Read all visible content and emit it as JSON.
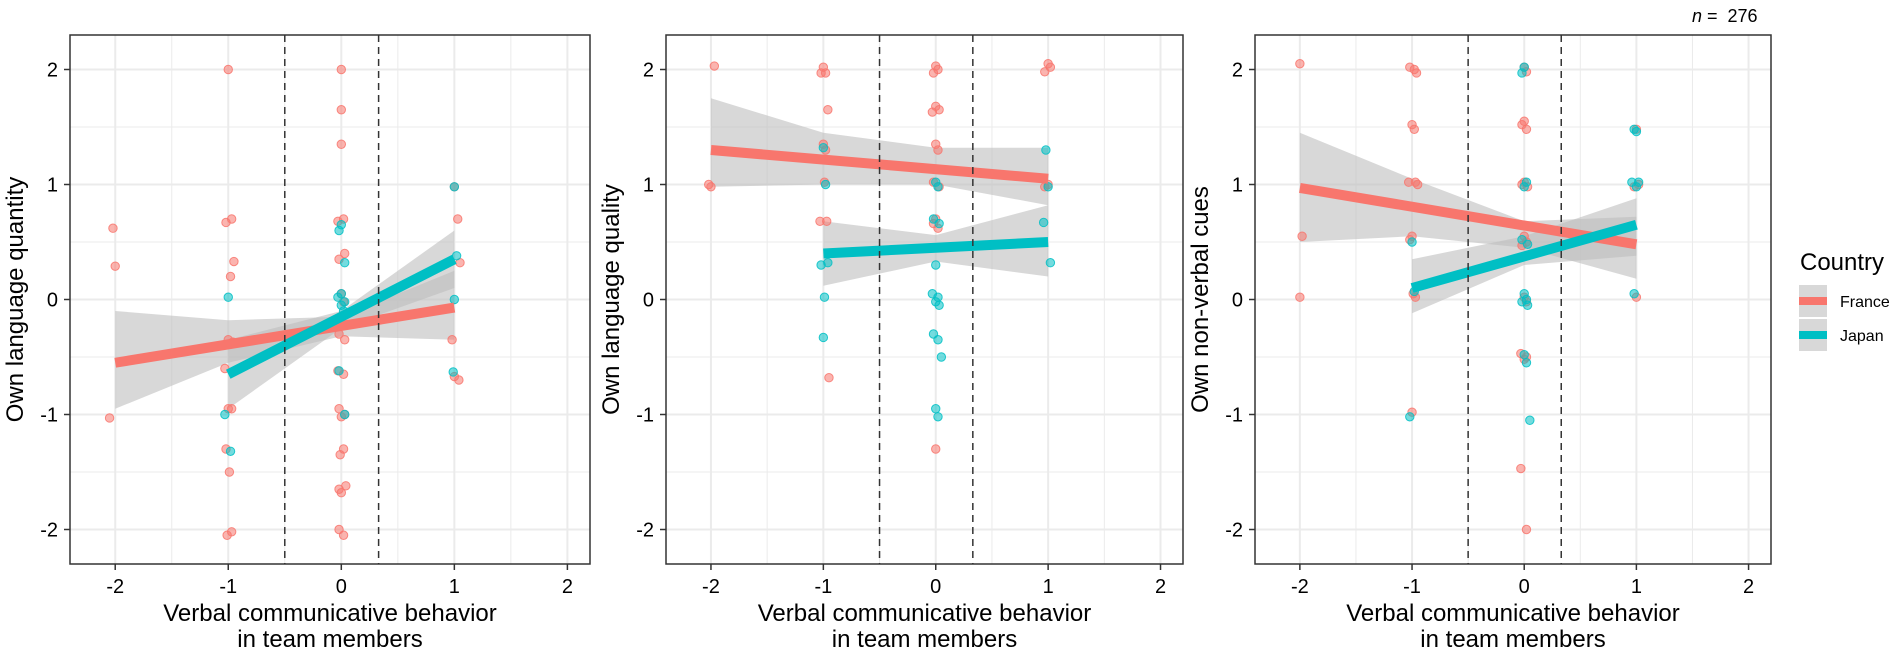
{
  "annotation": {
    "n_italic": "n",
    "n_rest": " =  276"
  },
  "legend": {
    "title": "Country",
    "items": [
      {
        "label": "France",
        "color": "#F8766D"
      },
      {
        "label": "Japan",
        "color": "#00BFC4"
      }
    ]
  },
  "colors": {
    "ci_band": "#BEBEBE",
    "grid": "#EBEBEB",
    "vline": "#333333"
  },
  "chart_data": [
    {
      "type": "scatter",
      "xlabel": [
        "Verbal communicative behavior",
        "in team members"
      ],
      "ylabel": "Own language quantity",
      "xlim": [
        -2.4,
        2.2
      ],
      "ylim": [
        -2.3,
        2.3
      ],
      "xticks": [
        -2,
        -1,
        0,
        1,
        2
      ],
      "yticks": [
        -2,
        -1,
        0,
        1,
        2
      ],
      "vlines": [
        -0.5,
        0.33
      ],
      "series": [
        {
          "name": "France",
          "line": {
            "x": [
              -2,
              1
            ],
            "y": [
              -0.55,
              -0.07
            ]
          },
          "ci": {
            "x": [
              -2,
              -1,
              0,
              1
            ],
            "lower": [
              -0.95,
              -0.55,
              -0.32,
              -0.35
            ],
            "upper": [
              -0.1,
              -0.18,
              -0.15,
              0.25
            ]
          },
          "points": [
            [
              -2.02,
              0.62
            ],
            [
              -2.0,
              0.29
            ],
            [
              -2.05,
              -1.03
            ],
            [
              -1.0,
              2.0
            ],
            [
              -1.02,
              0.67
            ],
            [
              -0.97,
              0.7
            ],
            [
              -0.95,
              0.33
            ],
            [
              -0.98,
              0.2
            ],
            [
              -1.0,
              -0.35
            ],
            [
              -0.96,
              -0.37
            ],
            [
              -1.03,
              -0.6
            ],
            [
              -1.0,
              -0.95
            ],
            [
              -0.97,
              -0.95
            ],
            [
              -1.02,
              -1.3
            ],
            [
              -0.99,
              -1.5
            ],
            [
              -1.01,
              -2.05
            ],
            [
              -0.97,
              -2.02
            ],
            [
              0.0,
              2.0
            ],
            [
              0.0,
              1.65
            ],
            [
              0.0,
              1.35
            ],
            [
              0.02,
              0.7
            ],
            [
              -0.03,
              0.68
            ],
            [
              0.03,
              0.4
            ],
            [
              -0.02,
              0.35
            ],
            [
              0.0,
              0.05
            ],
            [
              0.02,
              -0.02
            ],
            [
              -0.02,
              -0.3
            ],
            [
              0.03,
              -0.35
            ],
            [
              -0.03,
              -0.62
            ],
            [
              0.02,
              -0.65
            ],
            [
              -0.02,
              -0.95
            ],
            [
              0.03,
              -1.0
            ],
            [
              0.0,
              -1.02
            ],
            [
              0.02,
              -1.3
            ],
            [
              -0.01,
              -1.35
            ],
            [
              0.04,
              -1.62
            ],
            [
              -0.02,
              -1.65
            ],
            [
              0.0,
              -1.68
            ],
            [
              -0.02,
              -2.0
            ],
            [
              0.02,
              -2.05
            ],
            [
              1.0,
              0.98
            ],
            [
              1.03,
              0.7
            ],
            [
              1.05,
              0.32
            ],
            [
              0.98,
              -0.35
            ],
            [
              1.0,
              -0.67
            ],
            [
              1.04,
              -0.7
            ]
          ]
        },
        {
          "name": "Japan",
          "line": {
            "x": [
              -1,
              1
            ],
            "y": [
              -0.65,
              0.35
            ]
          },
          "ci": {
            "x": [
              -1,
              0,
              1
            ],
            "lower": [
              -0.95,
              -0.25,
              0.1
            ],
            "upper": [
              -0.35,
              -0.1,
              0.6
            ]
          },
          "points": [
            [
              -1.0,
              0.02
            ],
            [
              -1.03,
              -1.0
            ],
            [
              -0.98,
              -1.32
            ],
            [
              0.0,
              0.65
            ],
            [
              -0.02,
              0.6
            ],
            [
              0.03,
              0.32
            ],
            [
              0.0,
              0.05
            ],
            [
              -0.03,
              0.02
            ],
            [
              0.03,
              -0.02
            ],
            [
              0.0,
              -0.05
            ],
            [
              0.02,
              -0.1
            ],
            [
              -0.02,
              -0.62
            ],
            [
              0.03,
              -1.0
            ],
            [
              1.0,
              0.98
            ],
            [
              1.02,
              0.38
            ],
            [
              1.0,
              0.0
            ],
            [
              0.99,
              -0.63
            ]
          ]
        }
      ]
    },
    {
      "type": "scatter",
      "xlabel": [
        "Verbal communicative behavior",
        "in team members"
      ],
      "ylabel": "Own language quality",
      "xlim": [
        -2.4,
        2.2
      ],
      "ylim": [
        -2.3,
        2.3
      ],
      "xticks": [
        -2,
        -1,
        0,
        1,
        2
      ],
      "yticks": [
        -2,
        -1,
        0,
        1,
        2
      ],
      "vlines": [
        -0.5,
        0.33
      ],
      "series": [
        {
          "name": "France",
          "line": {
            "x": [
              -2,
              1
            ],
            "y": [
              1.3,
              1.05
            ]
          },
          "ci": {
            "x": [
              -2,
              -1,
              0,
              1
            ],
            "lower": [
              0.98,
              1.0,
              1.0,
              0.82
            ],
            "upper": [
              1.75,
              1.45,
              1.32,
              1.32
            ]
          },
          "points": [
            [
              -2.02,
              1.0
            ],
            [
              -2.0,
              0.98
            ],
            [
              -1.97,
              2.03
            ],
            [
              -1.0,
              2.02
            ],
            [
              -0.98,
              1.97
            ],
            [
              -1.02,
              1.97
            ],
            [
              -0.96,
              1.65
            ],
            [
              -1.0,
              1.35
            ],
            [
              -0.98,
              1.3
            ],
            [
              -0.99,
              1.02
            ],
            [
              -1.03,
              0.68
            ],
            [
              -0.97,
              0.68
            ],
            [
              -0.95,
              -0.68
            ],
            [
              0.0,
              2.03
            ],
            [
              0.02,
              2.0
            ],
            [
              -0.02,
              1.97
            ],
            [
              0.0,
              1.68
            ],
            [
              0.03,
              1.65
            ],
            [
              -0.03,
              1.63
            ],
            [
              0.0,
              1.35
            ],
            [
              0.02,
              1.3
            ],
            [
              -0.02,
              1.02
            ],
            [
              0.03,
              0.98
            ],
            [
              0.0,
              0.7
            ],
            [
              -0.02,
              0.66
            ],
            [
              0.02,
              0.62
            ],
            [
              0.0,
              -1.3
            ],
            [
              1.0,
              2.05
            ],
            [
              1.02,
              2.02
            ],
            [
              0.97,
              1.98
            ],
            [
              1.0,
              1.0
            ],
            [
              0.97,
              0.98
            ]
          ]
        },
        {
          "name": "Japan",
          "line": {
            "x": [
              -1,
              1
            ],
            "y": [
              0.4,
              0.5
            ]
          },
          "ci": {
            "x": [
              -1,
              0,
              1
            ],
            "lower": [
              0.12,
              0.33,
              0.2
            ],
            "upper": [
              0.68,
              0.56,
              0.82
            ]
          },
          "points": [
            [
              -1.0,
              1.32
            ],
            [
              -0.98,
              1.0
            ],
            [
              -0.96,
              0.32
            ],
            [
              -1.02,
              0.3
            ],
            [
              -0.99,
              0.02
            ],
            [
              -1.0,
              -0.33
            ],
            [
              0.0,
              1.02
            ],
            [
              0.02,
              0.98
            ],
            [
              -0.02,
              0.7
            ],
            [
              0.03,
              0.66
            ],
            [
              0.0,
              0.3
            ],
            [
              -0.03,
              0.05
            ],
            [
              0.02,
              0.02
            ],
            [
              0.0,
              -0.02
            ],
            [
              0.03,
              -0.05
            ],
            [
              -0.02,
              -0.3
            ],
            [
              0.02,
              -0.35
            ],
            [
              0.05,
              -0.5
            ],
            [
              0.0,
              -0.95
            ],
            [
              0.02,
              -1.02
            ],
            [
              0.98,
              1.3
            ],
            [
              1.0,
              0.98
            ],
            [
              0.96,
              0.67
            ],
            [
              1.02,
              0.32
            ]
          ]
        }
      ]
    },
    {
      "type": "scatter",
      "xlabel": [
        "Verbal communicative behavior",
        "in team members"
      ],
      "ylabel": "Own non-verbal cues",
      "xlim": [
        -2.4,
        2.2
      ],
      "ylim": [
        -2.3,
        2.3
      ],
      "xticks": [
        -2,
        -1,
        0,
        1,
        2
      ],
      "yticks": [
        -2,
        -1,
        0,
        1,
        2
      ],
      "vlines": [
        -0.5,
        0.33
      ],
      "series": [
        {
          "name": "France",
          "line": {
            "x": [
              -2,
              1
            ],
            "y": [
              0.97,
              0.48
            ]
          },
          "ci": {
            "x": [
              -2,
              -1,
              0,
              1
            ],
            "lower": [
              0.5,
              0.55,
              0.45,
              0.18
            ],
            "upper": [
              1.45,
              1.05,
              0.68,
              0.72
            ]
          },
          "points": [
            [
              -2.0,
              2.05
            ],
            [
              -1.98,
              0.55
            ],
            [
              -2.0,
              0.02
            ],
            [
              -1.02,
              2.02
            ],
            [
              -0.98,
              2.0
            ],
            [
              -0.96,
              1.97
            ],
            [
              -1.0,
              1.52
            ],
            [
              -0.98,
              1.48
            ],
            [
              -1.03,
              1.02
            ],
            [
              -0.97,
              1.02
            ],
            [
              -0.95,
              1.0
            ],
            [
              -1.0,
              0.55
            ],
            [
              -1.02,
              0.52
            ],
            [
              -0.99,
              0.05
            ],
            [
              -0.97,
              0.02
            ],
            [
              -1.0,
              -0.98
            ],
            [
              0.0,
              2.02
            ],
            [
              0.02,
              1.98
            ],
            [
              0.0,
              1.55
            ],
            [
              -0.02,
              1.52
            ],
            [
              0.02,
              1.48
            ],
            [
              0.0,
              1.02
            ],
            [
              -0.02,
              1.0
            ],
            [
              0.03,
              0.98
            ],
            [
              0.0,
              0.55
            ],
            [
              0.02,
              0.5
            ],
            [
              -0.02,
              0.47
            ],
            [
              0.0,
              0.02
            ],
            [
              0.02,
              -0.02
            ],
            [
              -0.03,
              -0.47
            ],
            [
              0.02,
              -0.5
            ],
            [
              0.0,
              -0.52
            ],
            [
              -0.03,
              -1.47
            ],
            [
              0.02,
              -2.0
            ],
            [
              1.0,
              1.48
            ],
            [
              1.02,
              1.0
            ],
            [
              0.98,
              0.98
            ],
            [
              1.0,
              0.02
            ]
          ]
        },
        {
          "name": "Japan",
          "line": {
            "x": [
              -1,
              1
            ],
            "y": [
              0.1,
              0.65
            ]
          },
          "ci": {
            "x": [
              -1,
              0,
              1
            ],
            "lower": [
              -0.12,
              0.3,
              0.38
            ],
            "upper": [
              0.35,
              0.55,
              0.88
            ]
          },
          "points": [
            [
              -1.0,
              0.5
            ],
            [
              -0.98,
              0.07
            ],
            [
              -1.02,
              -1.02
            ],
            [
              0.0,
              2.02
            ],
            [
              -0.02,
              1.97
            ],
            [
              0.02,
              1.02
            ],
            [
              0.0,
              0.98
            ],
            [
              -0.02,
              0.52
            ],
            [
              0.03,
              0.48
            ],
            [
              0.0,
              0.05
            ],
            [
              0.02,
              0.0
            ],
            [
              -0.02,
              -0.02
            ],
            [
              0.03,
              -0.05
            ],
            [
              0.0,
              -0.48
            ],
            [
              0.02,
              -0.55
            ],
            [
              0.05,
              -1.05
            ],
            [
              0.98,
              1.48
            ],
            [
              1.0,
              1.46
            ],
            [
              1.02,
              1.02
            ],
            [
              0.96,
              1.02
            ],
            [
              1.0,
              0.98
            ],
            [
              0.98,
              0.05
            ]
          ]
        }
      ]
    }
  ]
}
